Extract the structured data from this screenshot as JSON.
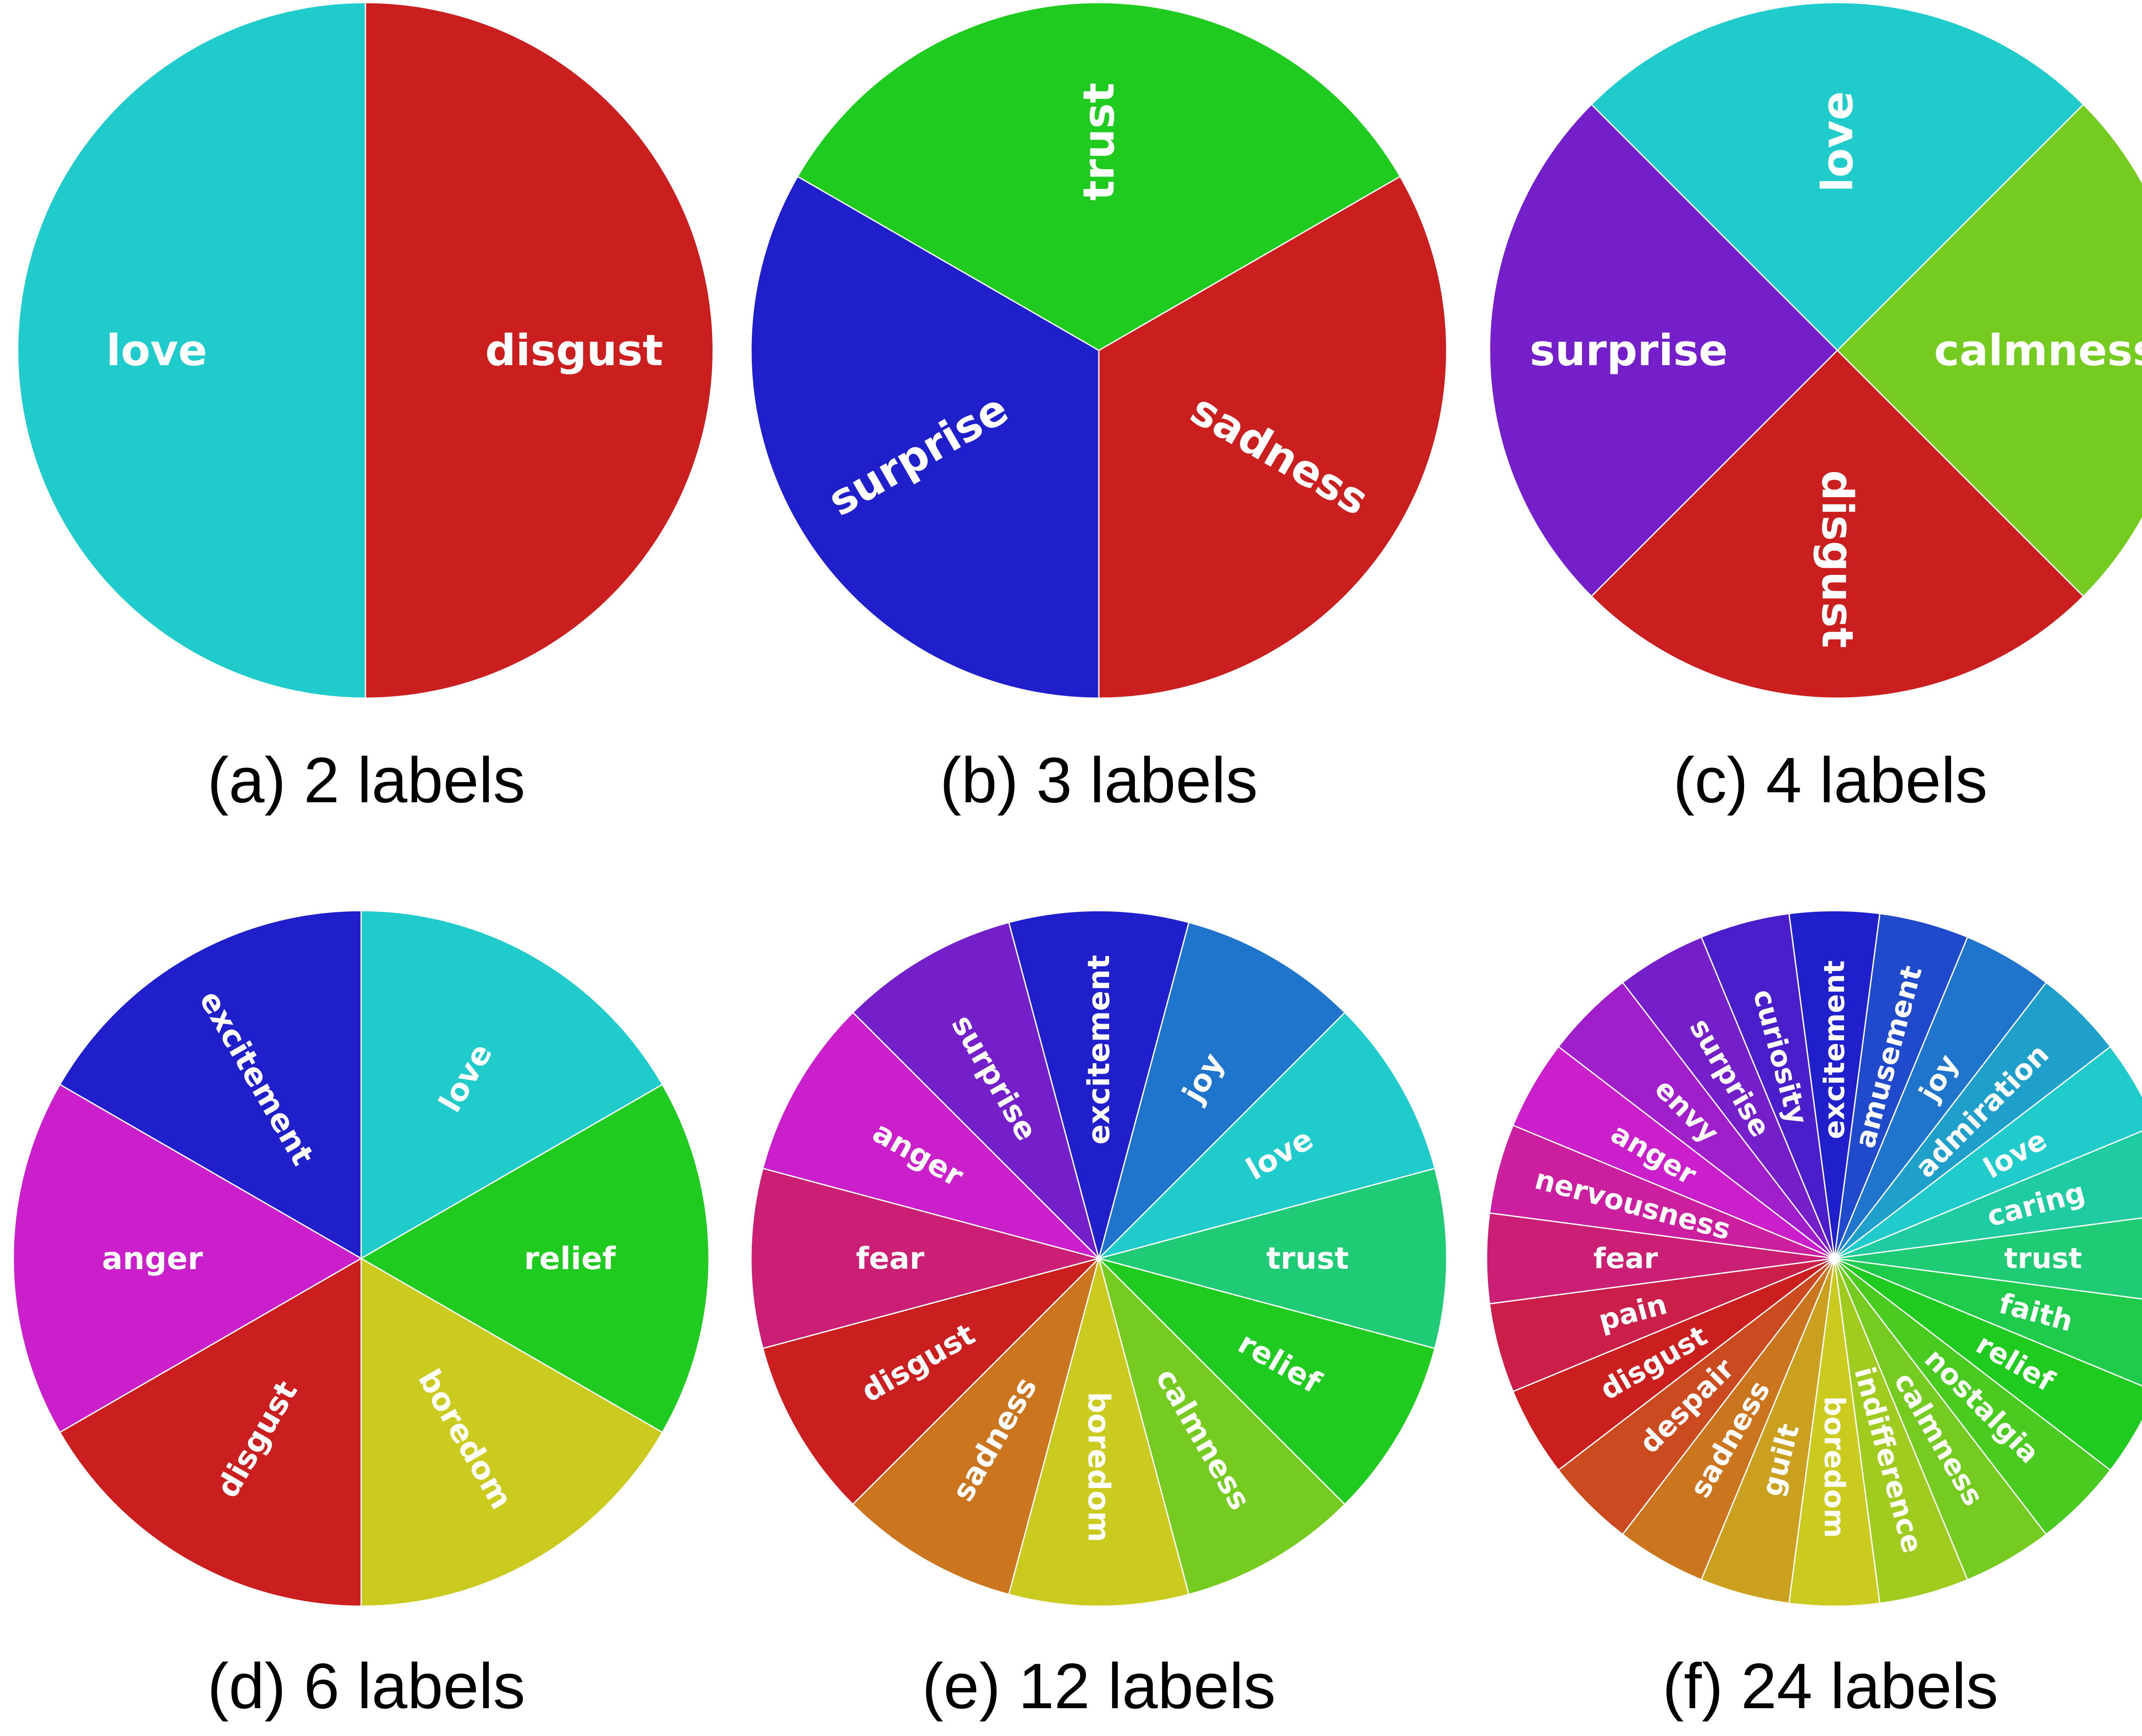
{
  "chart_data": [
    {
      "type": "pie",
      "caption": "(a) 2 labels",
      "slices": [
        {
          "label": "love",
          "value": 1,
          "color": "#1fcbcb"
        },
        {
          "label": "disgust",
          "value": 1,
          "color": "#cb1f1f"
        }
      ]
    },
    {
      "type": "pie",
      "caption": "(b) 3 labels",
      "slices": [
        {
          "label": "surprise",
          "value": 1,
          "color": "#1f1fcb"
        },
        {
          "label": "sadness",
          "value": 1,
          "color": "#cb1f1f"
        },
        {
          "label": "trust",
          "value": 1,
          "color": "#1fcb1f"
        }
      ]
    },
    {
      "type": "pie",
      "caption": "(c) 4 labels",
      "slices": [
        {
          "label": "surprise",
          "value": 1,
          "color": "#751fcb"
        },
        {
          "label": "disgust",
          "value": 1,
          "color": "#cb1f1f"
        },
        {
          "label": "calmness",
          "value": 1,
          "color": "#75cb1f"
        },
        {
          "label": "love",
          "value": 1,
          "color": "#1fcbcb"
        }
      ]
    },
    {
      "type": "pie",
      "caption": "(d) 6 labels",
      "slices": [
        {
          "label": "excitement",
          "value": 1,
          "color": "#1f1fcb"
        },
        {
          "label": "anger",
          "value": 1,
          "color": "#cb1fcb"
        },
        {
          "label": "disgust",
          "value": 1,
          "color": "#cb1f1f"
        },
        {
          "label": "boredom",
          "value": 1,
          "color": "#cbcb1f"
        },
        {
          "label": "relief",
          "value": 1,
          "color": "#1fcb1f"
        },
        {
          "label": "love",
          "value": 1,
          "color": "#1fcbcb"
        }
      ]
    },
    {
      "type": "pie",
      "caption": "(e) 12 labels",
      "slices": [
        {
          "label": "excitement",
          "value": 1,
          "color": "#1f1fcb"
        },
        {
          "label": "surprise",
          "value": 1,
          "color": "#751fcb"
        },
        {
          "label": "anger",
          "value": 1,
          "color": "#cb1fcb"
        },
        {
          "label": "fear",
          "value": 1,
          "color": "#cb1f75"
        },
        {
          "label": "disgust",
          "value": 1,
          "color": "#cb1f1f"
        },
        {
          "label": "sadness",
          "value": 1,
          "color": "#cb751f"
        },
        {
          "label": "boredom",
          "value": 1,
          "color": "#cbcb1f"
        },
        {
          "label": "calmness",
          "value": 1,
          "color": "#75cb1f"
        },
        {
          "label": "relief",
          "value": 1,
          "color": "#1fcb1f"
        },
        {
          "label": "trust",
          "value": 1,
          "color": "#1fcb75"
        },
        {
          "label": "love",
          "value": 1,
          "color": "#1fcbcb"
        },
        {
          "label": "joy",
          "value": 1,
          "color": "#1f75cb"
        }
      ]
    },
    {
      "type": "pie",
      "caption": "(f) 24 labels",
      "slices": [
        {
          "label": "excitement",
          "value": 1,
          "color": "#1f1fcb"
        },
        {
          "label": "curiosity",
          "value": 1,
          "color": "#4a1fcb"
        },
        {
          "label": "surprise",
          "value": 1,
          "color": "#751fcb"
        },
        {
          "label": "envy",
          "value": 1,
          "color": "#a01fcb"
        },
        {
          "label": "anger",
          "value": 1,
          "color": "#cb1fcb"
        },
        {
          "label": "nervousness",
          "value": 1,
          "color": "#cb1fa0"
        },
        {
          "label": "fear",
          "value": 1,
          "color": "#cb1f75"
        },
        {
          "label": "pain",
          "value": 1,
          "color": "#cb1f4a"
        },
        {
          "label": "disgust",
          "value": 1,
          "color": "#cb1f1f"
        },
        {
          "label": "despair",
          "value": 1,
          "color": "#cb4a1f"
        },
        {
          "label": "sadness",
          "value": 1,
          "color": "#cb751f"
        },
        {
          "label": "guilt",
          "value": 1,
          "color": "#cba01f"
        },
        {
          "label": "boredom",
          "value": 1,
          "color": "#cbcb1f"
        },
        {
          "label": "indifference",
          "value": 1,
          "color": "#a0cb1f"
        },
        {
          "label": "calmness",
          "value": 1,
          "color": "#75cb1f"
        },
        {
          "label": "nostalgia",
          "value": 1,
          "color": "#4acb1f"
        },
        {
          "label": "relief",
          "value": 1,
          "color": "#1fcb1f"
        },
        {
          "label": "faith",
          "value": 1,
          "color": "#1fcb4a"
        },
        {
          "label": "trust",
          "value": 1,
          "color": "#1fcb75"
        },
        {
          "label": "caring",
          "value": 1,
          "color": "#1fcba0"
        },
        {
          "label": "love",
          "value": 1,
          "color": "#1fcbcb"
        },
        {
          "label": "admiration",
          "value": 1,
          "color": "#1fa0cb"
        },
        {
          "label": "joy",
          "value": 1,
          "color": "#1f75cb"
        },
        {
          "label": "amusement",
          "value": 1,
          "color": "#1f4acb"
        }
      ]
    }
  ]
}
